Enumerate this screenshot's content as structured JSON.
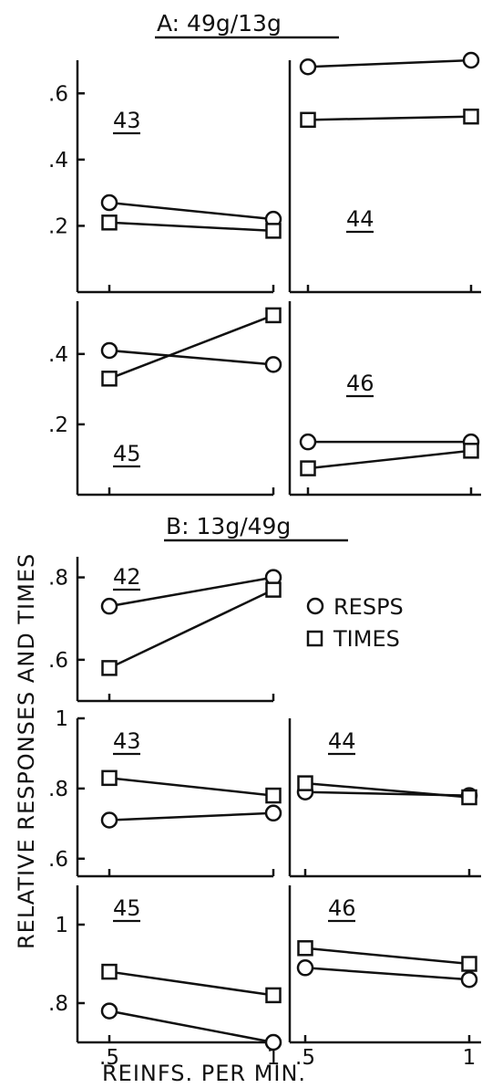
{
  "section_a_title": "A: 49g/13g",
  "section_b_title": "B: 13g/49g",
  "ylabel": "RELATIVE RESPONSES AND TIMES",
  "xlabel": "REINFS. PER MIN.",
  "legend": [
    {
      "marker": "circle",
      "label": "RESPS"
    },
    {
      "marker": "square",
      "label": "TIMES"
    }
  ],
  "chart_data": [
    {
      "type": "line",
      "section": "A",
      "subject": "43",
      "x": [
        0.5,
        1
      ],
      "ylim": [
        0.0,
        0.7
      ],
      "yticks": [
        {
          "v": 0.2,
          "label": ".2"
        },
        {
          "v": 0.4,
          "label": ".4"
        },
        {
          "v": 0.6,
          "label": ".6"
        }
      ],
      "series": [
        {
          "name": "RESPS",
          "marker": "circle",
          "values": [
            0.27,
            0.22
          ]
        },
        {
          "name": "TIMES",
          "marker": "square",
          "values": [
            0.21,
            0.185
          ]
        }
      ]
    },
    {
      "type": "line",
      "section": "A",
      "subject": "44",
      "x": [
        0.5,
        1
      ],
      "ylim": [
        0.0,
        0.7
      ],
      "yticks": [],
      "series": [
        {
          "name": "RESPS",
          "marker": "circle",
          "values": [
            0.68,
            0.7
          ]
        },
        {
          "name": "TIMES",
          "marker": "square",
          "values": [
            0.52,
            0.53
          ]
        }
      ]
    },
    {
      "type": "line",
      "section": "A",
      "subject": "45",
      "x": [
        0.5,
        1
      ],
      "ylim": [
        0.0,
        0.55
      ],
      "yticks": [
        {
          "v": 0.2,
          "label": ".2"
        },
        {
          "v": 0.4,
          "label": ".4"
        }
      ],
      "series": [
        {
          "name": "RESPS",
          "marker": "circle",
          "values": [
            0.41,
            0.37
          ]
        },
        {
          "name": "TIMES",
          "marker": "square",
          "values": [
            0.33,
            0.51
          ]
        }
      ]
    },
    {
      "type": "line",
      "section": "A",
      "subject": "46",
      "x": [
        0.5,
        1
      ],
      "ylim": [
        0.0,
        0.55
      ],
      "yticks": [],
      "series": [
        {
          "name": "RESPS",
          "marker": "circle",
          "values": [
            0.15,
            0.15
          ]
        },
        {
          "name": "TIMES",
          "marker": "square",
          "values": [
            0.075,
            0.125
          ]
        }
      ]
    },
    {
      "type": "line",
      "section": "B",
      "subject": "42",
      "x": [
        0.5,
        1
      ],
      "ylim": [
        0.5,
        0.85
      ],
      "yticks": [
        {
          "v": 0.6,
          "label": ".6"
        },
        {
          "v": 0.8,
          "label": ".8"
        }
      ],
      "series": [
        {
          "name": "RESPS",
          "marker": "circle",
          "values": [
            0.73,
            0.8
          ]
        },
        {
          "name": "TIMES",
          "marker": "square",
          "values": [
            0.58,
            0.77
          ]
        }
      ]
    },
    {
      "type": "line",
      "section": "B",
      "subject": "43",
      "x": [
        0.5,
        1
      ],
      "ylim": [
        0.55,
        1.0
      ],
      "yticks": [
        {
          "v": 0.6,
          "label": ".6"
        },
        {
          "v": 0.8,
          "label": ".8"
        },
        {
          "v": 1.0,
          "label": "1"
        }
      ],
      "series": [
        {
          "name": "RESPS",
          "marker": "circle",
          "values": [
            0.71,
            0.73
          ]
        },
        {
          "name": "TIMES",
          "marker": "square",
          "values": [
            0.83,
            0.78
          ]
        }
      ]
    },
    {
      "type": "line",
      "section": "B",
      "subject": "44",
      "x": [
        0.5,
        1
      ],
      "ylim": [
        0.55,
        1.0
      ],
      "yticks": [],
      "series": [
        {
          "name": "RESPS",
          "marker": "circle",
          "values": [
            0.79,
            0.78
          ]
        },
        {
          "name": "TIMES",
          "marker": "square",
          "values": [
            0.815,
            0.775
          ]
        }
      ]
    },
    {
      "type": "line",
      "section": "B",
      "subject": "45",
      "x": [
        0.5,
        1
      ],
      "ylim": [
        0.7,
        1.1
      ],
      "yticks": [
        {
          "v": 0.8,
          "label": ".8"
        },
        {
          "v": 1.0,
          "label": "1"
        }
      ],
      "series": [
        {
          "name": "RESPS",
          "marker": "circle",
          "values": [
            0.78,
            0.7
          ]
        },
        {
          "name": "TIMES",
          "marker": "square",
          "values": [
            0.88,
            0.82
          ]
        }
      ]
    },
    {
      "type": "line",
      "section": "B",
      "subject": "46",
      "x": [
        0.5,
        1
      ],
      "ylim": [
        0.7,
        1.1
      ],
      "yticks": [],
      "series": [
        {
          "name": "RESPS",
          "marker": "circle",
          "values": [
            0.89,
            0.86
          ]
        },
        {
          "name": "TIMES",
          "marker": "square",
          "values": [
            0.94,
            0.9
          ]
        }
      ]
    }
  ],
  "x_ticks": [
    {
      "v": 0.5,
      "label": ".5"
    },
    {
      "v": 1,
      "label": "1"
    }
  ]
}
